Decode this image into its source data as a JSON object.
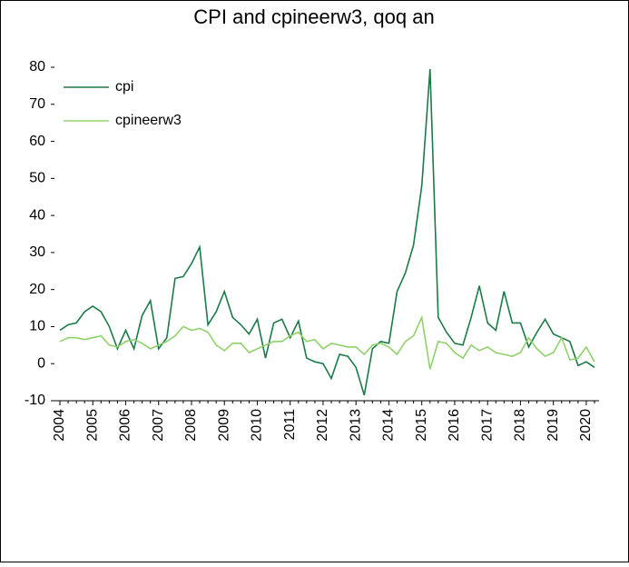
{
  "chart_data": {
    "type": "line",
    "title": "CPI and cpineerw3, qoq an",
    "categories": [
      "2004",
      null,
      null,
      null,
      "2005",
      null,
      null,
      null,
      "2006",
      null,
      null,
      null,
      "2007",
      null,
      null,
      null,
      "2008",
      null,
      null,
      null,
      "2009",
      null,
      null,
      null,
      "2010",
      null,
      null,
      null,
      "2011",
      null,
      null,
      null,
      "2012",
      null,
      null,
      null,
      "2013",
      null,
      null,
      null,
      "2014",
      null,
      null,
      null,
      "2015",
      null,
      null,
      null,
      "2016",
      null,
      null,
      null,
      "2017",
      null,
      null,
      null,
      "2018",
      null,
      null,
      null,
      "2019",
      null,
      null,
      null,
      "2020",
      null
    ],
    "series": [
      {
        "name": "cpi",
        "color": "#1b7a47",
        "values": [
          9,
          10.5,
          11,
          14,
          15.5,
          14,
          10,
          4,
          9,
          4,
          13,
          17,
          4,
          7,
          23,
          23.5,
          27,
          31.5,
          10.5,
          14,
          19.5,
          12.5,
          10.5,
          8,
          12,
          1.5,
          11,
          12,
          7,
          11.5,
          1.5,
          0.5,
          0,
          -4,
          2.5,
          2,
          -1,
          -8.5,
          4,
          6,
          5.5,
          19.5,
          24.5,
          32,
          48,
          79.5,
          12.5,
          8.5,
          5.5,
          5,
          12.5,
          21,
          11,
          9,
          19.5,
          11,
          11,
          4.5,
          8.5,
          12,
          8,
          7,
          6,
          -0.5,
          0.5,
          -1
        ]
      },
      {
        "name": "cpineerw3",
        "color": "#8fd16a",
        "values": [
          6,
          7,
          7,
          6.5,
          7,
          7.5,
          5,
          4.5,
          6,
          6.5,
          5.5,
          4,
          5,
          6,
          7.5,
          10,
          9,
          9.5,
          8.5,
          5,
          3.5,
          5.5,
          5.5,
          3,
          4,
          5,
          6,
          6,
          7.5,
          8.5,
          6,
          6.5,
          4,
          5.5,
          5,
          4.5,
          4.5,
          2.5,
          5,
          5.5,
          4.5,
          2.5,
          6,
          7.5,
          12.5,
          -1.5,
          6,
          5.5,
          3,
          1.5,
          5,
          3.5,
          4.5,
          3,
          2.5,
          2,
          3,
          7,
          4,
          2,
          3,
          7,
          1,
          1.5,
          4.5,
          0.5
        ]
      }
    ],
    "ylim": [
      -10,
      80
    ],
    "yticks": [
      -10,
      0,
      10,
      20,
      30,
      40,
      50,
      60,
      70,
      80
    ],
    "grid": false,
    "legend": "upper left"
  }
}
